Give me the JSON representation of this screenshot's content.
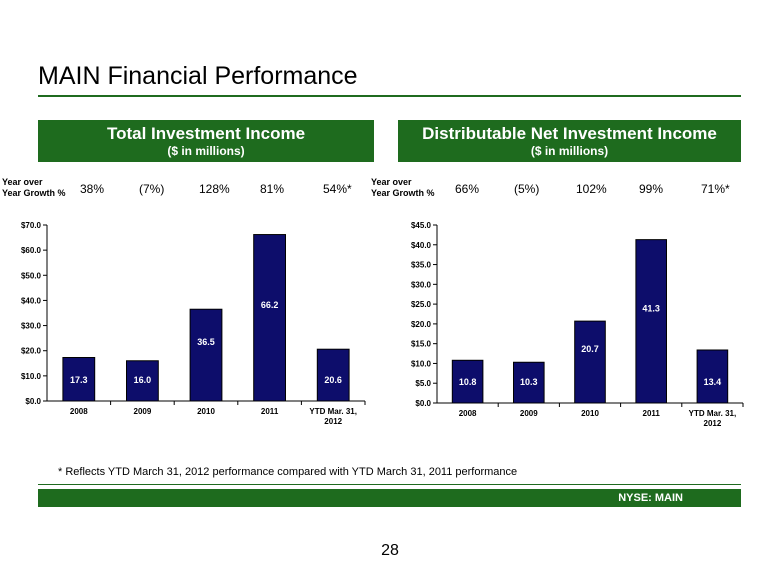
{
  "title": "MAIN Financial Performance",
  "yoy_label_line1": "Year over",
  "yoy_label_line2": "Year Growth %",
  "footnote": "* Reflects YTD March 31, 2012 performance compared with YTD March 31, 2011 performance",
  "ticker": "NYSE:  MAIN",
  "page_number": "28",
  "colors": {
    "brand_green": "#1e6b1e",
    "bar_navy": "#0d0d6b"
  },
  "left_panel": {
    "header_title": "Total Investment Income",
    "header_subtitle": "($ in millions)",
    "growth": [
      "38%",
      "(7%)",
      "128%",
      "81%",
      "54%*"
    ]
  },
  "right_panel": {
    "header_title": "Distributable Net Investment Income",
    "header_subtitle": "($ in millions)",
    "growth": [
      "66%",
      "(5%)",
      "102%",
      "99%",
      "71%*"
    ]
  },
  "chart_data": [
    {
      "type": "bar",
      "categories": [
        "2008",
        "2009",
        "2010",
        "2011",
        "YTD Mar. 31, 2012"
      ],
      "values": [
        17.3,
        16.0,
        36.5,
        66.2,
        20.6
      ],
      "value_labels": [
        "17.3",
        "16.0",
        "36.5",
        "66.2",
        "20.6"
      ],
      "ylim": [
        0,
        70
      ],
      "yticks": [
        "$0.0",
        "$10.0",
        "$20.0",
        "$30.0",
        "$40.0",
        "$50.0",
        "$60.0",
        "$70.0"
      ],
      "ytick_values": [
        0,
        10,
        20,
        30,
        40,
        50,
        60,
        70
      ]
    },
    {
      "type": "bar",
      "categories": [
        "2008",
        "2009",
        "2010",
        "2011",
        "YTD Mar. 31, 2012"
      ],
      "values": [
        10.8,
        10.3,
        20.7,
        41.3,
        13.4
      ],
      "value_labels": [
        "10.8",
        "10.3",
        "20.7",
        "41.3",
        "13.4"
      ],
      "ylim": [
        0,
        45
      ],
      "yticks": [
        "$0.0",
        "$5.0",
        "$10.0",
        "$15.0",
        "$20.0",
        "$25.0",
        "$30.0",
        "$35.0",
        "$40.0",
        "$45.0"
      ],
      "ytick_values": [
        0,
        5,
        10,
        15,
        20,
        25,
        30,
        35,
        40,
        45
      ]
    }
  ]
}
